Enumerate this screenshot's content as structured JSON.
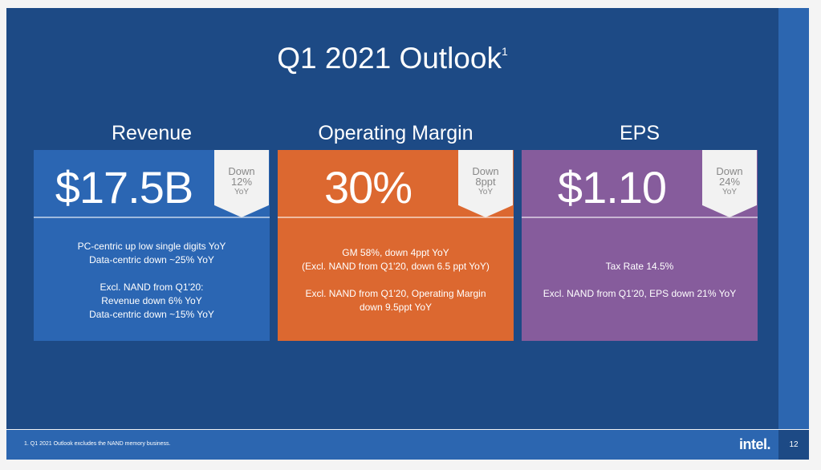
{
  "title": "Q1 2021 Outlook",
  "title_footnote_mark": "1",
  "cards": [
    {
      "heading": "Revenue",
      "value": "$17.5B",
      "badge": {
        "line1": "Down",
        "line2": "12%",
        "line3": "YoY"
      },
      "color": "#2b66b3",
      "paragraphs": [
        "PC-centric up low single digits YoY\nData-centric down ~25% YoY",
        "Excl. NAND from Q1'20:\nRevenue down 6% YoY\nData-centric down ~15% YoY"
      ]
    },
    {
      "heading": "Operating Margin",
      "value": "30%",
      "badge": {
        "line1": "Down",
        "line2": "8ppt",
        "line3": "YoY"
      },
      "color": "#dc6830",
      "paragraphs": [
        "GM 58%, down 4ppt YoY\n(Excl. NAND from Q1'20, down 6.5 ppt YoY)",
        "Excl. NAND from Q1'20, Operating Margin\ndown 9.5ppt YoY"
      ]
    },
    {
      "heading": "EPS",
      "value": "$1.10",
      "badge": {
        "line1": "Down",
        "line2": "24%",
        "line3": "YoY"
      },
      "color": "#865c9c",
      "paragraphs": [
        "Tax Rate 14.5%",
        "Excl. NAND from Q1'20, EPS down 21% YoY"
      ]
    }
  ],
  "footer": {
    "note": "1. Q1 2021 Outlook excludes the NAND memory business.",
    "logo": "intel.",
    "page": "12"
  }
}
